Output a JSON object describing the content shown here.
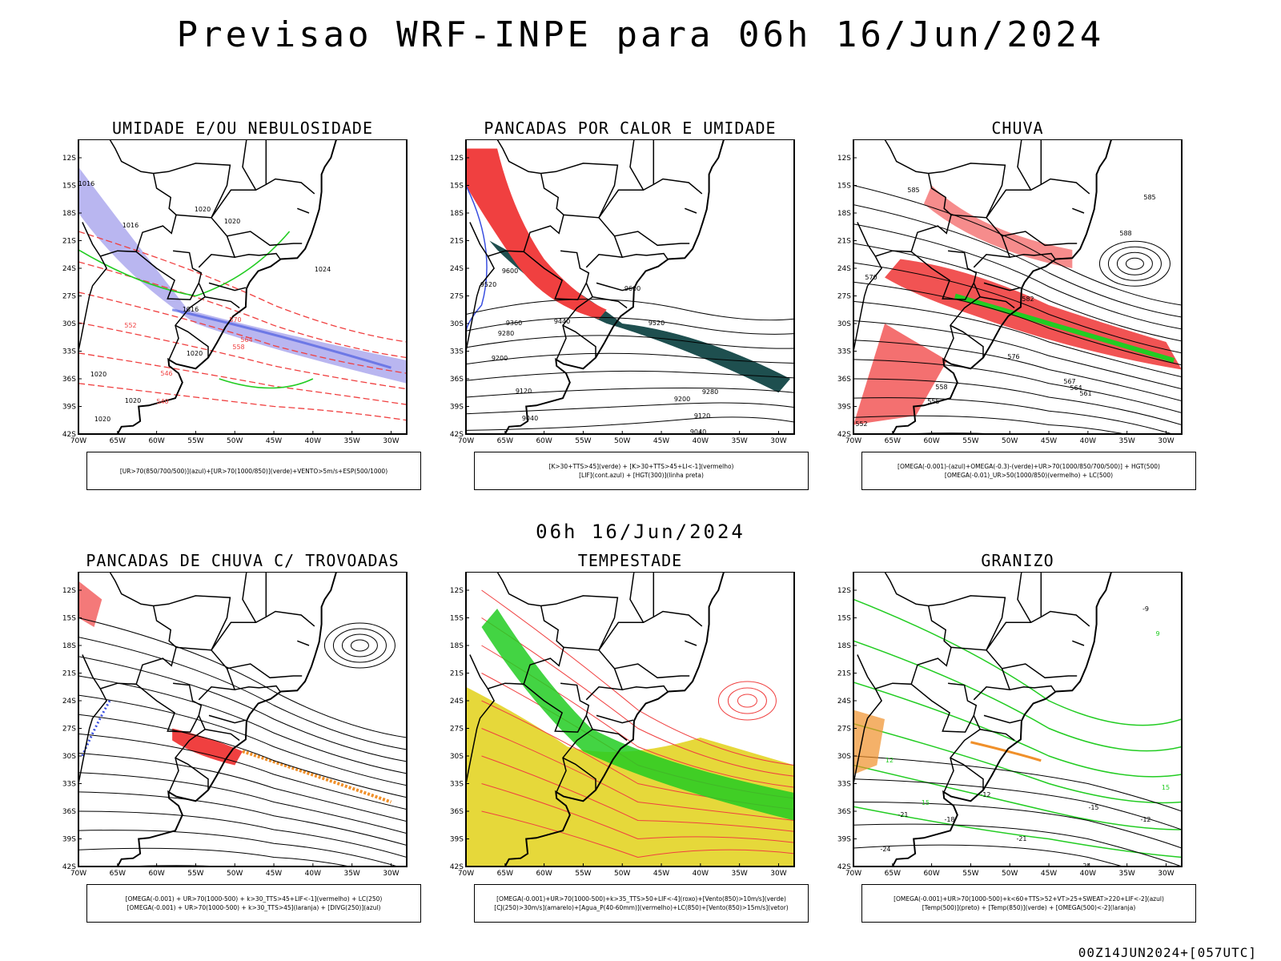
{
  "title": "Previsao WRF-INPE  para 06h 16/Jun/2024",
  "mid_date": "06h 16/Jun/2024",
  "footer": "00Z14JUN2024+[057UTC]",
  "axes": {
    "lat_labels": [
      "12S",
      "15S",
      "18S",
      "21S",
      "24S",
      "27S",
      "30S",
      "33S",
      "36S",
      "39S",
      "42S"
    ],
    "lon_labels": [
      "70W",
      "65W",
      "60W",
      "55W",
      "50W",
      "45W",
      "40W",
      "35W",
      "30W"
    ]
  },
  "colors": {
    "frame": "#000000",
    "red": "#f04040",
    "green": "#22cc22",
    "blue": "#3a4fe0",
    "lavender": "#b9b6f0",
    "teal": "#1e4f4f",
    "yellow": "#e6d83a",
    "orange": "#f0902a"
  },
  "panels": [
    {
      "title": "UMIDADE E/OU NEBULOSIDADE",
      "legend": [
        "[UR>70(850/700/500)](azul)+[UR>70(1000/850)](verde)+VENTO>5m/s+ESP(500/1000)"
      ],
      "contour_labels": [
        "1016",
        "1016",
        "1016",
        "1020",
        "1020",
        "1024",
        "1020",
        "1020",
        "1020",
        "1020",
        "570",
        "564",
        "558",
        "552",
        "546",
        "540"
      ]
    },
    {
      "title": "PANCADAS POR CALOR E UMIDADE",
      "legend": [
        "[K>30+TTS>45](verde) + [K>30+TTS>45+LI<-1](vermelho)",
        "[LIF](cont.azul) + [HGT(300)](linha preta)"
      ],
      "contour_labels": [
        "9600",
        "9520",
        "9600",
        "9520",
        "9360",
        "9440",
        "9280",
        "9200",
        "9120",
        "9280",
        "9200",
        "9120",
        "9040",
        "9040"
      ]
    },
    {
      "title": "CHUVA",
      "legend": [
        "[OMEGA(-0.001)-(azul)+OMEGA(-0.3)-(verde)+UR>70(1000/850/700/500)] + HGT(500)",
        "[OMEGA(-0.01)_UR>50(1000/850)(vermelho) + LC(500)"
      ],
      "contour_labels": [
        "585",
        "585",
        "588",
        "582",
        "576",
        "570",
        "567",
        "564",
        "561",
        "558",
        "555",
        "552"
      ]
    },
    {
      "title": "PANCADAS DE CHUVA C/ TROVOADAS",
      "legend": [
        "[OMEGA(-0.001) + UR>70(1000-500) + k>30_TTS>45+LIF<-1](vermelho) + LC(250)",
        "[OMEGA(-0.001) + UR>70(1000-500) + k>30_TTS>45](laranja) + [DIVG(250)](azul)"
      ],
      "contour_labels": []
    },
    {
      "title": "TEMPESTADE",
      "legend": [
        "[OMEGA(-0.001)+UR>70(1000-500)+k>35_TTS>50+LIF<-4](roxo)+[Vento(850)>10m/s](verde)",
        "[CJ(250)>30m/s](amarelo)+[Agua_P(40-60mm)](vermelho)+LC(850)+[Vento(850)>15m/s](vetor)"
      ],
      "contour_labels": []
    },
    {
      "title": "GRANIZO",
      "legend": [
        "[OMEGA(-0.001)+UR>70(1000-500)+k<60+TTS>52+VT>25+SWEAT>220+LIF<-2](azul)",
        "[Temp(500)](preto) + [Temp(850)](verde) + [OMEGA(500)<-2](laranja)"
      ],
      "contour_labels": [
        "-9",
        "-12",
        "-15",
        "-18",
        "-21",
        "-24",
        "-24",
        "-21",
        "-12",
        "12",
        "15",
        "15",
        "9"
      ]
    }
  ]
}
